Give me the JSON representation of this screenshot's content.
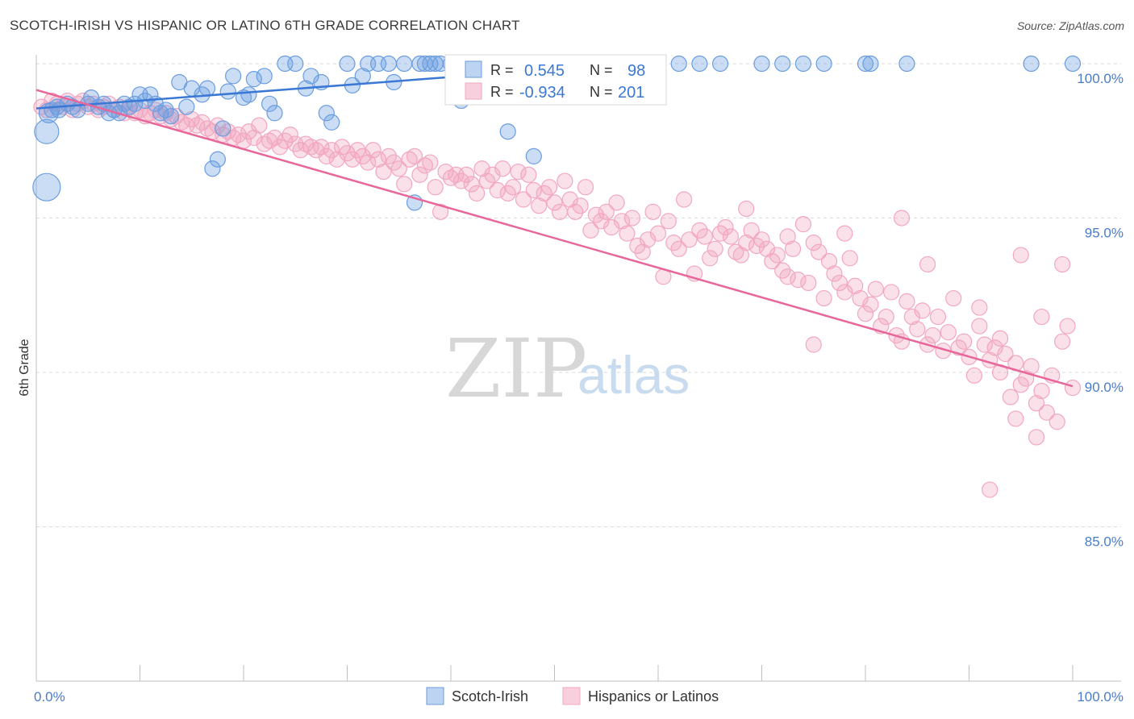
{
  "title": "SCOTCH-IRISH VS HISPANIC OR LATINO 6TH GRADE CORRELATION CHART",
  "source": "Source: ZipAtlas.com",
  "watermark": {
    "zip": "ZIP",
    "atlas": "atlas"
  },
  "colors": {
    "blue": "#6a9de0",
    "blue_line": "#3b78d6",
    "pink": "#f2a7c0",
    "pink_line": "#e8679a",
    "tick": "#4a7cc9"
  },
  "legend_top": {
    "rows": [
      {
        "r_label": "R =",
        "r_value": "0.545",
        "n_label": "N =",
        "n_value": "98"
      },
      {
        "r_label": "R =",
        "r_value": "-0.934",
        "n_label": "N =",
        "n_value": "201"
      }
    ]
  },
  "legend_bottom": {
    "items": [
      "Scotch-Irish",
      "Hispanics or Latinos"
    ]
  },
  "chart_data": {
    "type": "scatter",
    "ylabel": "6th Grade",
    "xlabel": "",
    "x_ticks": [
      "0.0%",
      "100.0%"
    ],
    "y_ticks": [
      "100.0%",
      "95.0%",
      "90.0%",
      "85.0%"
    ],
    "xlim": [
      0,
      100
    ],
    "ylim": [
      80.5,
      100.4
    ],
    "grid": true,
    "series": [
      {
        "name": "Scotch-Irish",
        "color": "#6a9de0",
        "trend": [
          [
            0,
            98.55
          ],
          [
            57,
            100.0
          ]
        ],
        "points": [
          [
            1,
            96
          ],
          [
            1,
            97.8
          ],
          [
            1.2,
            98.4
          ],
          [
            1.5,
            98.5
          ],
          [
            2,
            98.6
          ],
          [
            2.2,
            98.5
          ],
          [
            3,
            98.7
          ],
          [
            3.5,
            98.6
          ],
          [
            4,
            98.5
          ],
          [
            5,
            98.7
          ],
          [
            5.3,
            98.9
          ],
          [
            6,
            98.6
          ],
          [
            6.5,
            98.7
          ],
          [
            7,
            98.4
          ],
          [
            7.5,
            98.5
          ],
          [
            8,
            98.4
          ],
          [
            8.5,
            98.7
          ],
          [
            9,
            98.6
          ],
          [
            9.5,
            98.7
          ],
          [
            10,
            99.0
          ],
          [
            10.5,
            98.8
          ],
          [
            11,
            99.0
          ],
          [
            11.5,
            98.7
          ],
          [
            12,
            98.4
          ],
          [
            12.5,
            98.5
          ],
          [
            13,
            98.3
          ],
          [
            13.8,
            99.4
          ],
          [
            14.5,
            98.6
          ],
          [
            15,
            99.2
          ],
          [
            16,
            99.0
          ],
          [
            16.5,
            99.2
          ],
          [
            17,
            96.6
          ],
          [
            17.5,
            96.9
          ],
          [
            18,
            97.9
          ],
          [
            18.5,
            99.1
          ],
          [
            19,
            99.6
          ],
          [
            20,
            98.9
          ],
          [
            20.5,
            99.0
          ],
          [
            21,
            99.5
          ],
          [
            22,
            99.6
          ],
          [
            22.5,
            98.7
          ],
          [
            23,
            98.4
          ],
          [
            24,
            100
          ],
          [
            25,
            100
          ],
          [
            26,
            99.2
          ],
          [
            26.5,
            99.6
          ],
          [
            27.5,
            99.4
          ],
          [
            28,
            98.4
          ],
          [
            28.5,
            98.1
          ],
          [
            30,
            100
          ],
          [
            30.5,
            99.3
          ],
          [
            31.5,
            99.6
          ],
          [
            32,
            100
          ],
          [
            33,
            100
          ],
          [
            34,
            100
          ],
          [
            34.5,
            99.4
          ],
          [
            35.5,
            100
          ],
          [
            36.5,
            95.5
          ],
          [
            37,
            100
          ],
          [
            37.5,
            100
          ],
          [
            38,
            100
          ],
          [
            38.5,
            100
          ],
          [
            39,
            100
          ],
          [
            40,
            100
          ],
          [
            40.5,
            100
          ],
          [
            41,
            98.8
          ],
          [
            42,
            100
          ],
          [
            42.5,
            100
          ],
          [
            43,
            100
          ],
          [
            43.5,
            100
          ],
          [
            44.5,
            100
          ],
          [
            45.5,
            97.8
          ],
          [
            46.5,
            100
          ],
          [
            47.5,
            100
          ],
          [
            48,
            97.0
          ],
          [
            48.5,
            99.4
          ],
          [
            49,
            100
          ],
          [
            50,
            100
          ],
          [
            50.5,
            100
          ],
          [
            51,
            100
          ],
          [
            52,
            100
          ],
          [
            52.5,
            100
          ],
          [
            56,
            100
          ],
          [
            57,
            100
          ],
          [
            58,
            100
          ],
          [
            60,
            100
          ],
          [
            62,
            100
          ],
          [
            64,
            100
          ],
          [
            66,
            100
          ],
          [
            70,
            100
          ],
          [
            72,
            100
          ],
          [
            74,
            100
          ],
          [
            76,
            100
          ],
          [
            80,
            100
          ],
          [
            80.5,
            100
          ],
          [
            84,
            100
          ],
          [
            96,
            100
          ],
          [
            100,
            100
          ]
        ]
      },
      {
        "name": "Hispanics or Latinos",
        "color": "#f2a7c0",
        "trend": [
          [
            0,
            99.15
          ],
          [
            100,
            89.55
          ]
        ],
        "points": [
          [
            0.5,
            98.6
          ],
          [
            1,
            98.5
          ],
          [
            1.5,
            98.8
          ],
          [
            2,
            98.7
          ],
          [
            2.5,
            98.6
          ],
          [
            3,
            98.8
          ],
          [
            3.5,
            98.5
          ],
          [
            4,
            98.7
          ],
          [
            4.5,
            98.8
          ],
          [
            5,
            98.6
          ],
          [
            5.5,
            98.7
          ],
          [
            6,
            98.5
          ],
          [
            6.5,
            98.6
          ],
          [
            7,
            98.7
          ],
          [
            7.5,
            98.5
          ],
          [
            8,
            98.6
          ],
          [
            8.5,
            98.4
          ],
          [
            9,
            98.6
          ],
          [
            9.5,
            98.4
          ],
          [
            10,
            98.5
          ],
          [
            10.5,
            98.3
          ],
          [
            11,
            98.4
          ],
          [
            11.5,
            98.5
          ],
          [
            12,
            98.3
          ],
          [
            12.5,
            98.4
          ],
          [
            13,
            98.2
          ],
          [
            13.5,
            98.3
          ],
          [
            14,
            98.1
          ],
          [
            14.5,
            98.0
          ],
          [
            15,
            98.2
          ],
          [
            15.5,
            98.0
          ],
          [
            16,
            98.1
          ],
          [
            16.5,
            97.9
          ],
          [
            17,
            97.8
          ],
          [
            17.5,
            98.0
          ],
          [
            18,
            97.7
          ],
          [
            18.5,
            97.8
          ],
          [
            19,
            97.6
          ],
          [
            19.5,
            97.7
          ],
          [
            20,
            97.5
          ],
          [
            20.5,
            97.8
          ],
          [
            21,
            97.6
          ],
          [
            21.5,
            98.0
          ],
          [
            22,
            97.4
          ],
          [
            22.5,
            97.5
          ],
          [
            23,
            97.6
          ],
          [
            23.5,
            97.3
          ],
          [
            24,
            97.5
          ],
          [
            24.5,
            97.7
          ],
          [
            25,
            97.4
          ],
          [
            25.5,
            97.2
          ],
          [
            26,
            97.4
          ],
          [
            26.5,
            97.3
          ],
          [
            27,
            97.2
          ],
          [
            27.5,
            97.3
          ],
          [
            28,
            97.0
          ],
          [
            28.5,
            97.2
          ],
          [
            29,
            96.9
          ],
          [
            29.5,
            97.3
          ],
          [
            30,
            97.1
          ],
          [
            30.5,
            96.9
          ],
          [
            31,
            97.2
          ],
          [
            31.5,
            97.0
          ],
          [
            32,
            96.8
          ],
          [
            32.5,
            97.2
          ],
          [
            33,
            96.9
          ],
          [
            33.5,
            96.5
          ],
          [
            34,
            97.0
          ],
          [
            34.5,
            96.8
          ],
          [
            35,
            96.6
          ],
          [
            35.5,
            96.1
          ],
          [
            36,
            96.9
          ],
          [
            36.5,
            97.0
          ],
          [
            37,
            96.4
          ],
          [
            37.5,
            96.7
          ],
          [
            38,
            96.8
          ],
          [
            38.5,
            96.0
          ],
          [
            39,
            95.2
          ],
          [
            39.5,
            96.5
          ],
          [
            40,
            96.3
          ],
          [
            40.5,
            96.4
          ],
          [
            41,
            96.2
          ],
          [
            41.5,
            96.4
          ],
          [
            42,
            96.1
          ],
          [
            42.5,
            95.8
          ],
          [
            43,
            96.6
          ],
          [
            43.5,
            96.2
          ],
          [
            44,
            96.4
          ],
          [
            44.5,
            95.9
          ],
          [
            45,
            96.6
          ],
          [
            45.5,
            95.8
          ],
          [
            46,
            96.0
          ],
          [
            46.5,
            96.5
          ],
          [
            47,
            95.6
          ],
          [
            47.5,
            96.4
          ],
          [
            48,
            95.9
          ],
          [
            48.5,
            95.4
          ],
          [
            49,
            95.8
          ],
          [
            49.5,
            96.0
          ],
          [
            50,
            95.5
          ],
          [
            50.5,
            95.2
          ],
          [
            51,
            96.2
          ],
          [
            51.5,
            95.6
          ],
          [
            52,
            95.2
          ],
          [
            52.5,
            95.4
          ],
          [
            53,
            96.0
          ],
          [
            53.5,
            94.6
          ],
          [
            54,
            95.1
          ],
          [
            54.5,
            94.9
          ],
          [
            55,
            95.2
          ],
          [
            55.5,
            94.7
          ],
          [
            56,
            95.5
          ],
          [
            56.5,
            94.9
          ],
          [
            57,
            94.5
          ],
          [
            57.5,
            95.0
          ],
          [
            58,
            94.1
          ],
          [
            58.5,
            93.9
          ],
          [
            59,
            94.3
          ],
          [
            59.5,
            95.2
          ],
          [
            60,
            94.5
          ],
          [
            60.5,
            93.1
          ],
          [
            61,
            94.9
          ],
          [
            61.5,
            94.2
          ],
          [
            62,
            94.0
          ],
          [
            62.5,
            95.6
          ],
          [
            63,
            94.3
          ],
          [
            63.5,
            93.2
          ],
          [
            64,
            94.6
          ],
          [
            64.5,
            94.4
          ],
          [
            65,
            93.7
          ],
          [
            65.5,
            94.0
          ],
          [
            66,
            94.5
          ],
          [
            66.5,
            94.7
          ],
          [
            67,
            94.4
          ],
          [
            67.5,
            93.9
          ],
          [
            68,
            93.8
          ],
          [
            68.5,
            94.2
          ],
          [
            69,
            94.6
          ],
          [
            69.5,
            94.1
          ],
          [
            70,
            94.3
          ],
          [
            70.5,
            94.0
          ],
          [
            71,
            93.6
          ],
          [
            71.5,
            93.8
          ],
          [
            72,
            93.3
          ],
          [
            72.5,
            94.4
          ],
          [
            73,
            94.0
          ],
          [
            73.5,
            93.0
          ],
          [
            74,
            94.8
          ],
          [
            74.5,
            92.9
          ],
          [
            75,
            94.2
          ],
          [
            75.5,
            93.9
          ],
          [
            76,
            92.4
          ],
          [
            76.5,
            93.6
          ],
          [
            77,
            93.2
          ],
          [
            77.5,
            92.9
          ],
          [
            78,
            92.6
          ],
          [
            78.5,
            93.7
          ],
          [
            79,
            92.8
          ],
          [
            79.5,
            92.4
          ],
          [
            80,
            91.9
          ],
          [
            80.5,
            92.2
          ],
          [
            81,
            92.7
          ],
          [
            81.5,
            91.5
          ],
          [
            82,
            91.8
          ],
          [
            82.5,
            92.6
          ],
          [
            83,
            91.2
          ],
          [
            83.5,
            91.0
          ],
          [
            84,
            92.3
          ],
          [
            84.5,
            91.8
          ],
          [
            85,
            91.4
          ],
          [
            85.5,
            92.0
          ],
          [
            86,
            90.9
          ],
          [
            86.5,
            91.2
          ],
          [
            87,
            91.8
          ],
          [
            87.5,
            90.7
          ],
          [
            88,
            91.3
          ],
          [
            88.5,
            92.4
          ],
          [
            89,
            90.8
          ],
          [
            89.5,
            91.0
          ],
          [
            90,
            90.5
          ],
          [
            90.5,
            89.9
          ],
          [
            91,
            91.5
          ],
          [
            91.5,
            90.9
          ],
          [
            92,
            90.4
          ],
          [
            92.5,
            90.8
          ],
          [
            93,
            91.1
          ],
          [
            93.5,
            90.6
          ],
          [
            94,
            89.2
          ],
          [
            94.5,
            90.3
          ],
          [
            95,
            89.6
          ],
          [
            95.5,
            89.8
          ],
          [
            96,
            90.2
          ],
          [
            96.5,
            89.0
          ],
          [
            97,
            89.4
          ],
          [
            97.5,
            88.7
          ],
          [
            98,
            89.9
          ],
          [
            98.5,
            88.4
          ],
          [
            99,
            91.0
          ],
          [
            99.5,
            91.5
          ],
          [
            100,
            89.5
          ],
          [
            68.5,
            95.3
          ],
          [
            72.5,
            93.1
          ],
          [
            78,
            94.5
          ],
          [
            86,
            93.5
          ],
          [
            91,
            92.1
          ],
          [
            95,
            93.8
          ],
          [
            97,
            91.8
          ],
          [
            99,
            93.5
          ],
          [
            92,
            86.2
          ],
          [
            93,
            90.0
          ],
          [
            75,
            90.9
          ],
          [
            83.5,
            95.0
          ],
          [
            96.5,
            87.9
          ],
          [
            94.5,
            88.5
          ]
        ]
      }
    ]
  }
}
